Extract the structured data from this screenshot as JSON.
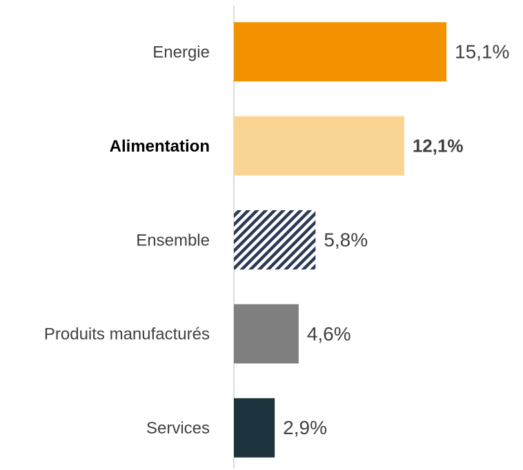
{
  "chart_data": {
    "type": "hbar",
    "categories": [
      "Energie",
      "Alimentation",
      "Ensemble",
      "Produits manufacturés",
      "Services"
    ],
    "values": [
      15.1,
      12.1,
      5.8,
      4.6,
      2.9
    ],
    "value_labels": [
      "15,1%",
      "12,1%",
      "5,8%",
      "4,6%",
      "2,9%"
    ],
    "colors": [
      "#f39200",
      "#f9d493",
      "#2d3a55",
      "#7f7f7f",
      "#1c323d"
    ],
    "patterns": [
      "solid",
      "solid",
      "hatch",
      "solid",
      "solid"
    ],
    "bold": [
      false,
      true,
      false,
      false,
      false
    ],
    "xlim": [
      0,
      20
    ]
  }
}
